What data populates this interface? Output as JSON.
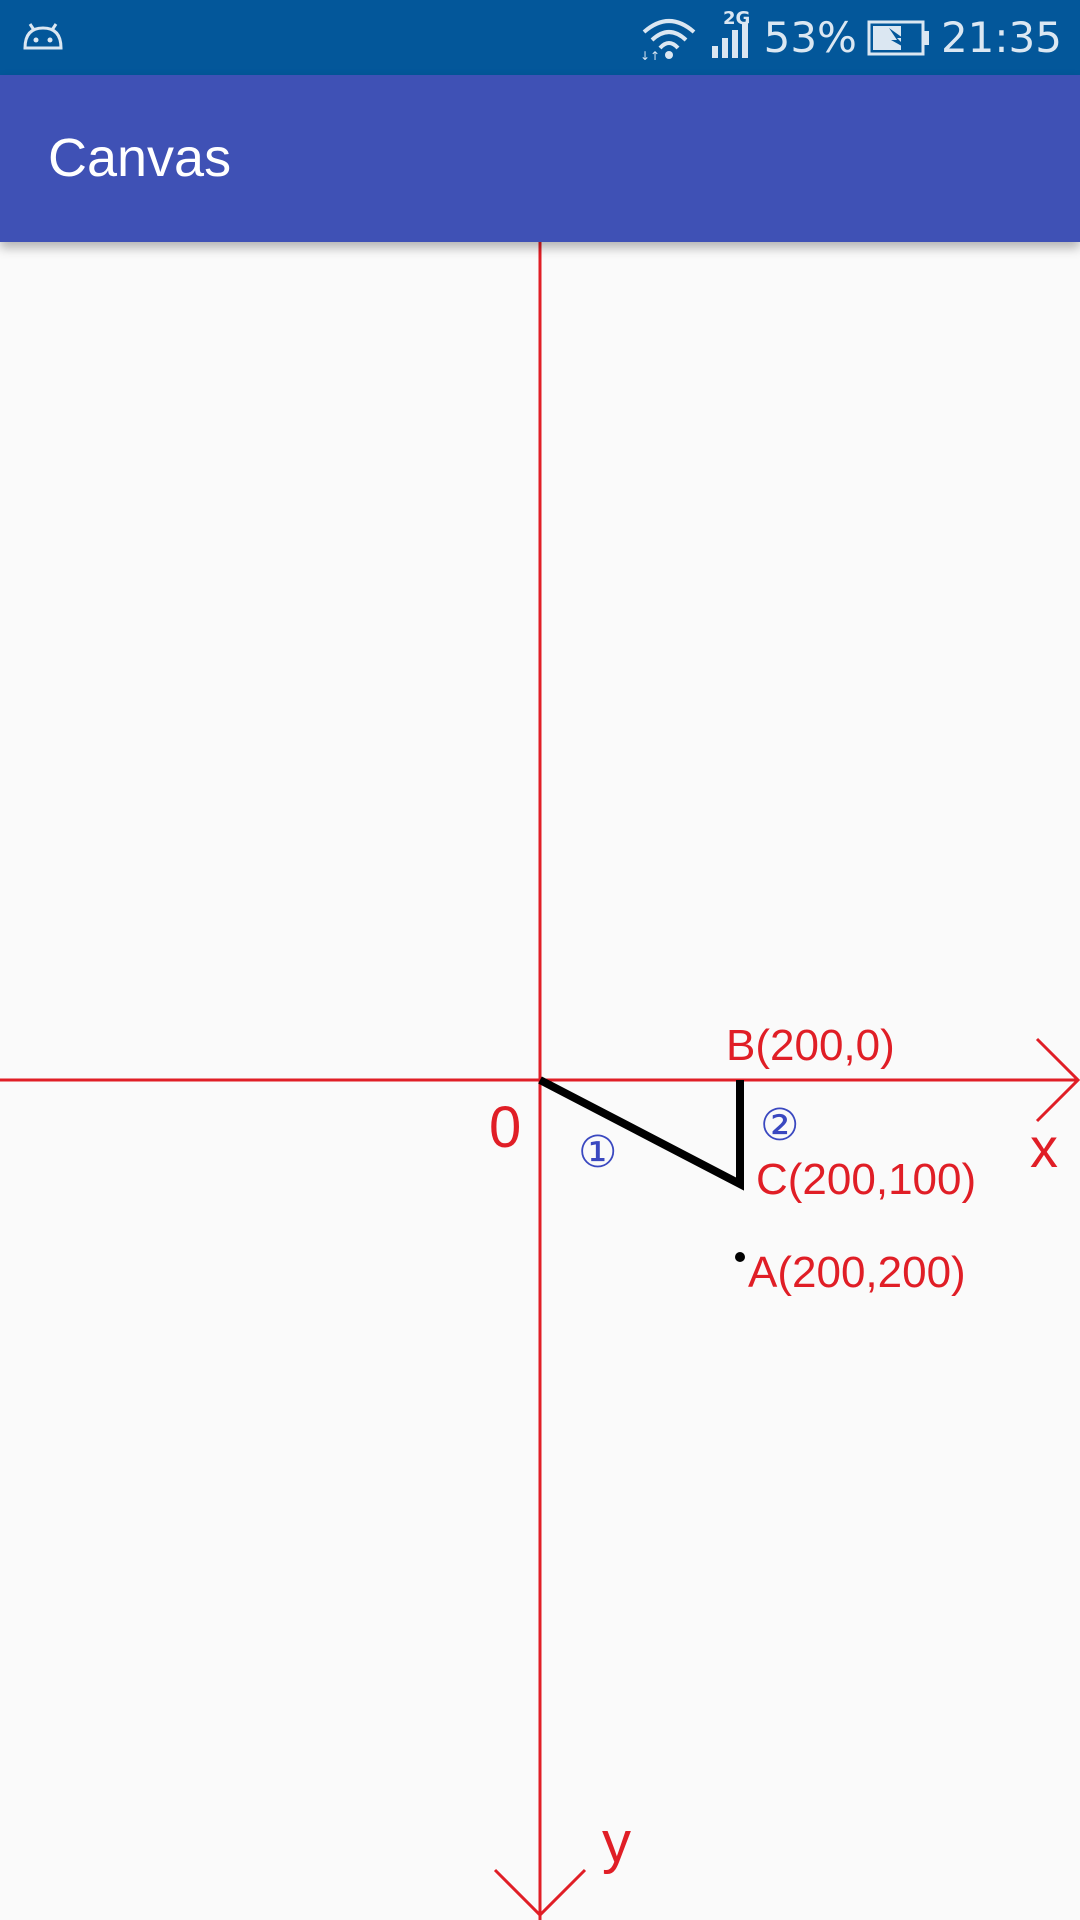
{
  "status_bar": {
    "network_type": "2G",
    "battery": "53%",
    "time": "21:35",
    "icons": [
      "android-icon",
      "wifi-icon",
      "signal-icon",
      "battery-charging-icon"
    ]
  },
  "app_bar": {
    "title": "Canvas"
  },
  "canvas": {
    "axis_color": "#e01e26",
    "path_color": "#000000",
    "marker_color": "#3a48c0",
    "origin_label": "0",
    "x_axis_label": "x",
    "y_axis_label": "y",
    "points": [
      {
        "label": "B(200,0)",
        "x": 200,
        "y": 0
      },
      {
        "label": "C(200,100)",
        "x": 200,
        "y": 100
      },
      {
        "label": "A(200,200)",
        "x": 200,
        "y": 200
      }
    ],
    "segment_markers": [
      "①",
      "②"
    ]
  }
}
